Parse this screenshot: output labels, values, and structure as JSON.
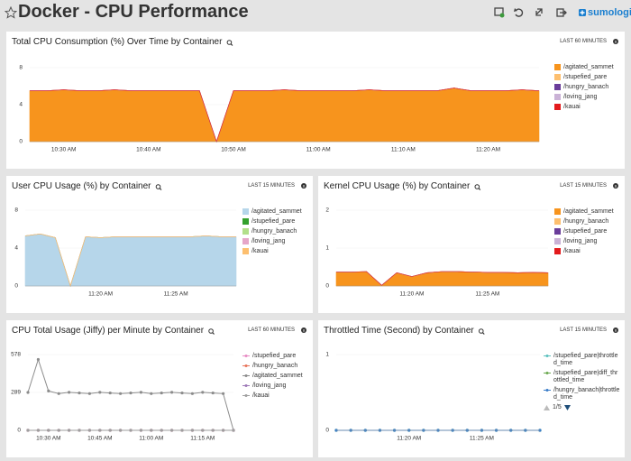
{
  "header": {
    "title": "Docker - CPU Performance",
    "logo": "sumologic"
  },
  "chart_data": [
    {
      "type": "area",
      "stacked": true,
      "title": "Total CPU Consumption (%) Over Time by Container",
      "time_range": "LAST 60 MINUTES",
      "categories": [
        null,
        null,
        "10:30 AM",
        null,
        null,
        null,
        null,
        "10:40 AM",
        null,
        null,
        null,
        null,
        "10:50 AM",
        null,
        null,
        null,
        null,
        "11:00 AM",
        null,
        null,
        null,
        null,
        "11:10 AM",
        null,
        null,
        null,
        null,
        "11:20 AM",
        null,
        null,
        null
      ],
      "ylim": [
        0,
        8
      ],
      "yticks": [
        0,
        4,
        8
      ],
      "series": [
        {
          "name": "/agitated_sammet",
          "color": "#f7941d",
          "values": [
            5.5,
            5.5,
            5.6,
            5.5,
            5.5,
            5.6,
            5.5,
            5.5,
            5.5,
            5.5,
            5.5,
            0,
            5.5,
            5.5,
            5.5,
            5.6,
            5.5,
            5.5,
            5.5,
            5.5,
            5.6,
            5.5,
            5.5,
            5.5,
            5.5,
            5.8,
            5.5,
            5.5,
            5.5,
            5.6,
            5.5
          ]
        },
        {
          "name": "/stupefied_pare",
          "color": "#fdbf6f",
          "values": [
            0,
            0,
            0,
            0,
            0,
            0,
            0,
            0,
            0,
            0,
            0,
            0,
            0,
            0,
            0,
            0,
            0,
            0,
            0,
            0,
            0,
            0,
            0,
            0,
            0,
            0,
            0,
            0,
            0,
            0,
            0
          ]
        },
        {
          "name": "/hungry_banach",
          "color": "#6a3d9a",
          "values": [
            0,
            0,
            0,
            0,
            0,
            0,
            0,
            0,
            0,
            0,
            0,
            0,
            0,
            0,
            0,
            0,
            0,
            0,
            0,
            0,
            0,
            0,
            0,
            0,
            0,
            0,
            0,
            0,
            0,
            0,
            0
          ]
        },
        {
          "name": "/loving_jang",
          "color": "#cab2d6",
          "values": [
            0,
            0,
            0,
            0,
            0,
            0,
            0,
            0,
            0,
            0,
            0,
            0,
            0,
            0,
            0,
            0,
            0,
            0,
            0,
            0,
            0,
            0,
            0,
            0,
            0,
            0,
            0,
            0,
            0,
            0,
            0
          ]
        },
        {
          "name": "/kauai",
          "color": "#e31a1c",
          "values": [
            0,
            0,
            0,
            0,
            0,
            0,
            0,
            0,
            0,
            0,
            0,
            0,
            0,
            0,
            0,
            0,
            0,
            0,
            0,
            0,
            0,
            0,
            0,
            0,
            0,
            0,
            0,
            0,
            0,
            0,
            0
          ]
        }
      ]
    },
    {
      "type": "area",
      "stacked": true,
      "title": "User CPU Usage (%) by Container",
      "time_range": "LAST 15 MINUTES",
      "categories": [
        null,
        null,
        null,
        null,
        null,
        "11:20 AM",
        null,
        null,
        null,
        null,
        "11:25 AM",
        null,
        null,
        null,
        null
      ],
      "ylim": [
        0,
        8
      ],
      "yticks": [
        0,
        4,
        8
      ],
      "series": [
        {
          "name": "/agitated_sammet",
          "color": "#b6d6ea",
          "values": [
            5.3,
            5.5,
            5.1,
            0,
            5.2,
            5.1,
            5.2,
            5.2,
            5.2,
            5.2,
            5.2,
            5.2,
            5.3,
            5.2,
            5.2
          ]
        },
        {
          "name": "/stupefied_pare",
          "color": "#33a02c",
          "values": [
            0,
            0,
            0,
            0,
            0,
            0,
            0,
            0,
            0,
            0,
            0,
            0,
            0,
            0,
            0
          ]
        },
        {
          "name": "/hungry_banach",
          "color": "#b2df8a",
          "values": [
            0,
            0,
            0,
            0,
            0,
            0,
            0,
            0,
            0,
            0,
            0,
            0,
            0,
            0,
            0
          ]
        },
        {
          "name": "/loving_jang",
          "color": "#e6a6c9",
          "values": [
            0,
            0,
            0,
            0,
            0,
            0,
            0,
            0,
            0,
            0,
            0,
            0,
            0,
            0,
            0
          ]
        },
        {
          "name": "/kauai",
          "color": "#fdbf6f",
          "values": [
            0,
            0,
            0,
            0,
            0,
            0,
            0,
            0,
            0,
            0,
            0,
            0,
            0,
            0,
            0
          ]
        }
      ]
    },
    {
      "type": "area",
      "stacked": true,
      "title": "Kernel CPU Usage (%) by Container",
      "time_range": "LAST 15 MINUTES",
      "categories": [
        null,
        null,
        null,
        null,
        null,
        "11:20 AM",
        null,
        null,
        null,
        null,
        "11:25 AM",
        null,
        null,
        null,
        null
      ],
      "ylim": [
        0,
        2
      ],
      "yticks": [
        0,
        1,
        2
      ],
      "series": [
        {
          "name": "/agitated_sammet",
          "color": "#f7941d",
          "values": [
            0.37,
            0.37,
            0.38,
            0.02,
            0.35,
            0.25,
            0.35,
            0.38,
            0.38,
            0.37,
            0.36,
            0.36,
            0.35,
            0.36,
            0.35
          ]
        },
        {
          "name": "/hungry_banach",
          "color": "#fdbf6f",
          "values": [
            0,
            0,
            0,
            0,
            0,
            0,
            0,
            0,
            0,
            0,
            0,
            0,
            0,
            0,
            0
          ]
        },
        {
          "name": "/stupefied_pare",
          "color": "#6a3d9a",
          "values": [
            0,
            0,
            0,
            0,
            0,
            0,
            0,
            0,
            0,
            0,
            0,
            0,
            0,
            0,
            0
          ]
        },
        {
          "name": "/loving_jang",
          "color": "#cab2d6",
          "values": [
            0,
            0,
            0,
            0,
            0,
            0,
            0,
            0,
            0,
            0,
            0,
            0,
            0,
            0,
            0
          ]
        },
        {
          "name": "/kauai",
          "color": "#e31a1c",
          "values": [
            0,
            0,
            0,
            0,
            0,
            0,
            0,
            0,
            0,
            0,
            0,
            0,
            0,
            0,
            0
          ]
        }
      ]
    },
    {
      "type": "line",
      "markers": true,
      "title": "CPU Total Usage (Jiffy) per Minute by Container",
      "time_range": "LAST 60 MINUTES",
      "categories": [
        null,
        null,
        "10:30 AM",
        null,
        null,
        null,
        null,
        "10:45 AM",
        null,
        null,
        null,
        null,
        "11:00 AM",
        null,
        null,
        null,
        null,
        "11:15 AM",
        null,
        null,
        null
      ],
      "ylim": [
        0,
        578
      ],
      "yticks": [
        0,
        289,
        578
      ],
      "series": [
        {
          "name": "/stupefied_pare",
          "color": "#e78ac3",
          "values": [
            0,
            0,
            0,
            0,
            0,
            0,
            0,
            0,
            0,
            0,
            0,
            0,
            0,
            0,
            0,
            0,
            0,
            0,
            0,
            0,
            0
          ]
        },
        {
          "name": "/hungry_banach",
          "color": "#e8735a",
          "values": [
            0,
            0,
            0,
            0,
            0,
            0,
            0,
            0,
            0,
            0,
            0,
            0,
            0,
            0,
            0,
            0,
            0,
            0,
            0,
            0,
            0
          ]
        },
        {
          "name": "/agitated_sammet",
          "color": "#8c8c8c",
          "values": [
            289,
            540,
            300,
            280,
            290,
            285,
            280,
            290,
            285,
            280,
            285,
            290,
            280,
            285,
            290,
            285,
            280,
            290,
            285,
            280,
            0
          ]
        },
        {
          "name": "/loving_jang",
          "color": "#9e7ab8",
          "values": [
            0,
            0,
            0,
            0,
            0,
            0,
            0,
            0,
            0,
            0,
            0,
            0,
            0,
            0,
            0,
            0,
            0,
            0,
            0,
            0,
            0
          ]
        },
        {
          "name": "/kauai",
          "color": "#a0a0a0",
          "values": [
            0,
            0,
            0,
            0,
            0,
            0,
            0,
            0,
            0,
            0,
            0,
            0,
            0,
            0,
            0,
            0,
            0,
            0,
            0,
            0,
            0
          ]
        }
      ]
    },
    {
      "type": "line",
      "markers": true,
      "title": "Throttled Time (Second) by Container",
      "time_range": "LAST 15 MINUTES",
      "categories": [
        null,
        null,
        null,
        null,
        null,
        "11:20 AM",
        null,
        null,
        null,
        null,
        "11:25 AM",
        null,
        null,
        null,
        null
      ],
      "ylim": [
        0,
        1
      ],
      "yticks": [
        0,
        1
      ],
      "legend_page": "1/5",
      "series": [
        {
          "name": "/stupefied_pare|throttled_time",
          "color": "#5bc0be",
          "values": [
            0,
            0,
            0,
            0,
            0,
            0,
            0,
            0,
            0,
            0,
            0,
            0,
            0,
            0,
            0
          ]
        },
        {
          "name": "/stupefied_pare|diff_throttled_time",
          "color": "#6aa84f",
          "values": [
            0,
            0,
            0,
            0,
            0,
            0,
            0,
            0,
            0,
            0,
            0,
            0,
            0,
            0,
            0
          ]
        },
        {
          "name": "/hungry_banach|throttled_time",
          "color": "#3a7dc9",
          "values": [
            0,
            0,
            0,
            0,
            0,
            0,
            0,
            0,
            0,
            0,
            0,
            0,
            0,
            0,
            0
          ]
        }
      ]
    }
  ]
}
